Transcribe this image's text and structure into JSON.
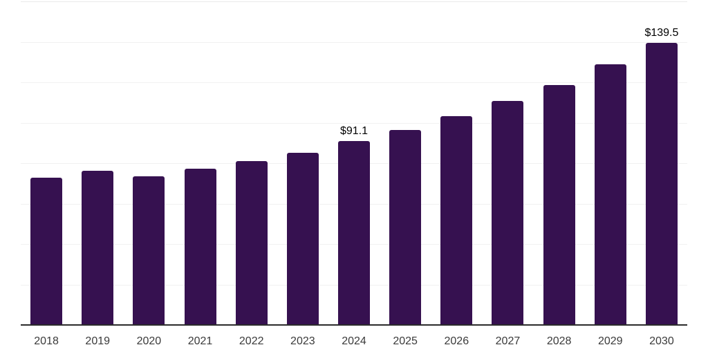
{
  "chart_data": {
    "type": "bar",
    "title": "",
    "xlabel": "",
    "ylabel": "",
    "categories": [
      "2018",
      "2019",
      "2020",
      "2021",
      "2022",
      "2023",
      "2024",
      "2025",
      "2026",
      "2027",
      "2028",
      "2029",
      "2030"
    ],
    "values": [
      72.8,
      76.2,
      73.5,
      77.2,
      81.0,
      85.1,
      91.1,
      96.5,
      103.3,
      110.7,
      118.6,
      129.0,
      139.5
    ],
    "data_labels": [
      "",
      "",
      "",
      "",
      "",
      "",
      "$91.1",
      "",
      "",
      "",
      "",
      "",
      "$139.5"
    ],
    "ylim": [
      0,
      160
    ],
    "grid_step": 20,
    "grid_on": true,
    "y_axis_labels_visible": false,
    "legend": "none",
    "colors": {
      "bar": "#361150",
      "gridline": "#f1f1f1",
      "top_gridline": "#e9e9e9",
      "axis_line": "#2b2b2b",
      "tick_text": "#3a3a3a",
      "value_label_text": "#000000",
      "background": "#ffffff"
    }
  }
}
